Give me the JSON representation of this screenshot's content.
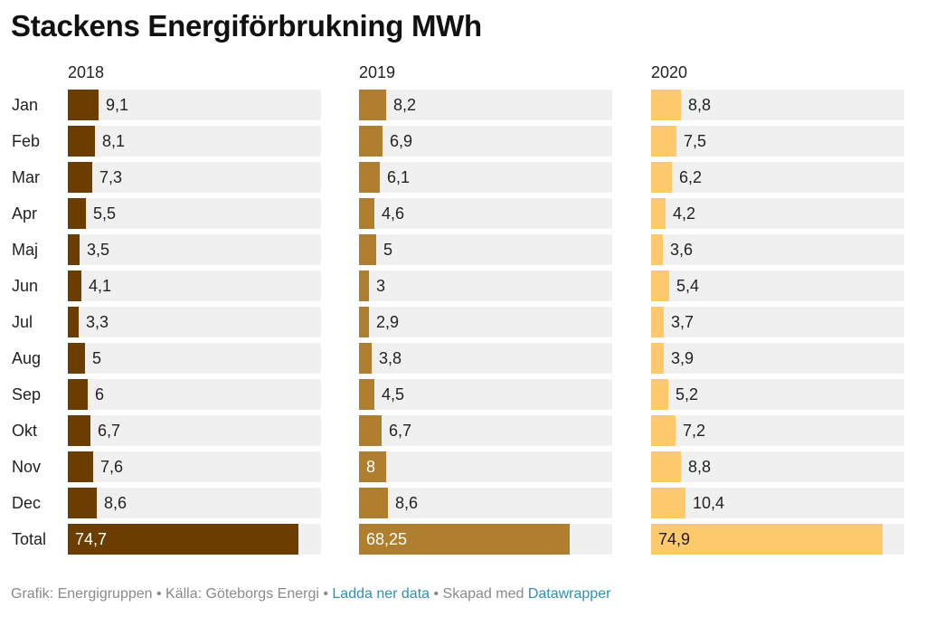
{
  "title": "Stackens Energiförbrukning MWh",
  "chart_data": {
    "type": "bar",
    "orientation": "horizontal",
    "categories": [
      "Jan",
      "Feb",
      "Mar",
      "Apr",
      "Maj",
      "Jun",
      "Jul",
      "Aug",
      "Sep",
      "Okt",
      "Nov",
      "Dec"
    ],
    "total_label": "Total",
    "series": [
      {
        "name": "2018",
        "color": "#6b3e00",
        "values": [
          9.1,
          8.1,
          7.3,
          5.5,
          3.5,
          4.1,
          3.3,
          5,
          6,
          6.7,
          7.6,
          8.6
        ],
        "labels": [
          "9,1",
          "8,1",
          "7,3",
          "5,5",
          "3,5",
          "4,1",
          "3,3",
          "5",
          "6",
          "6,7",
          "7,6",
          "8,6"
        ],
        "total": 74.7,
        "total_label": "74,7"
      },
      {
        "name": "2019",
        "color": "#b07e2f",
        "values": [
          8.2,
          6.9,
          6.1,
          4.6,
          5,
          3,
          2.9,
          3.8,
          4.5,
          6.7,
          8,
          8.6
        ],
        "labels": [
          "8,2",
          "6,9",
          "6,1",
          "4,6",
          "5",
          "3",
          "2,9",
          "3,8",
          "4,5",
          "6,7",
          "8",
          "8,6"
        ],
        "total": 68.25,
        "total_label": "68,25"
      },
      {
        "name": "2020",
        "color": "#ffc96e",
        "values": [
          8.8,
          7.5,
          6.2,
          4.2,
          3.6,
          5.4,
          3.7,
          3.9,
          5.2,
          7.2,
          8.8,
          10.4
        ],
        "labels": [
          "8,8",
          "7,5",
          "6,2",
          "4,2",
          "3,6",
          "5,4",
          "3,7",
          "3,9",
          "5,2",
          "7,2",
          "8,8",
          "10,4"
        ],
        "total": 74.9,
        "total_label": "74,9"
      }
    ],
    "xlim": [
      0,
      82
    ]
  },
  "footer": {
    "prefix": "Grafik: Energigruppen • Källa: Göteborgs Energi • ",
    "download_link": "Ladda ner data",
    "middle": " • Skapad med ",
    "tool_link": "Datawrapper"
  }
}
